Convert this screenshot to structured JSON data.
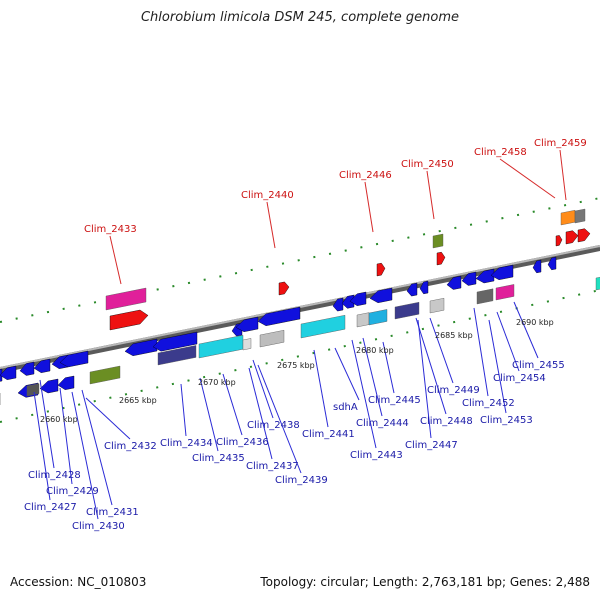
{
  "title": "Chlorobium limicola DSM 245, complete genome",
  "accession": "Accession: NC_010803",
  "summary": "Topology: circular; Length: 2,763,181 bp; Genes: 2,488",
  "colors": {
    "forward_gene": "#1010dd",
    "reverse_gene": "#ee1111",
    "label_forward": "#1a1aa8",
    "label_reverse": "#cc1111",
    "tick": "#2a8a2a",
    "backbone": "#8a8a8a"
  },
  "scale_labels": [
    "2660 kbp",
    "2665 kbp",
    "2670 kbp",
    "2675 kbp",
    "2680 kbp",
    "2685 kbp",
    "2690 kbp"
  ],
  "forward_labels": [
    "Clim_2428",
    "Clim_2429",
    "Clim_2427",
    "Clim_2431",
    "Clim_2430",
    "Clim_2432",
    "Clim_2434",
    "Clim_2435",
    "Clim_2436",
    "Clim_2437",
    "Clim_2438",
    "Clim_2439",
    "Clim_2441",
    "sdhA",
    "Clim_2443",
    "Clim_2444",
    "Clim_2445",
    "Clim_2447",
    "Clim_2448",
    "Clim_2449",
    "Clim_2452",
    "Clim_2453",
    "Clim_2454",
    "Clim_2455"
  ],
  "reverse_labels": [
    "Clim_2433",
    "Clim_2440",
    "Clim_2446",
    "Clim_2450",
    "Clim_2458",
    "Clim_2459"
  ]
}
